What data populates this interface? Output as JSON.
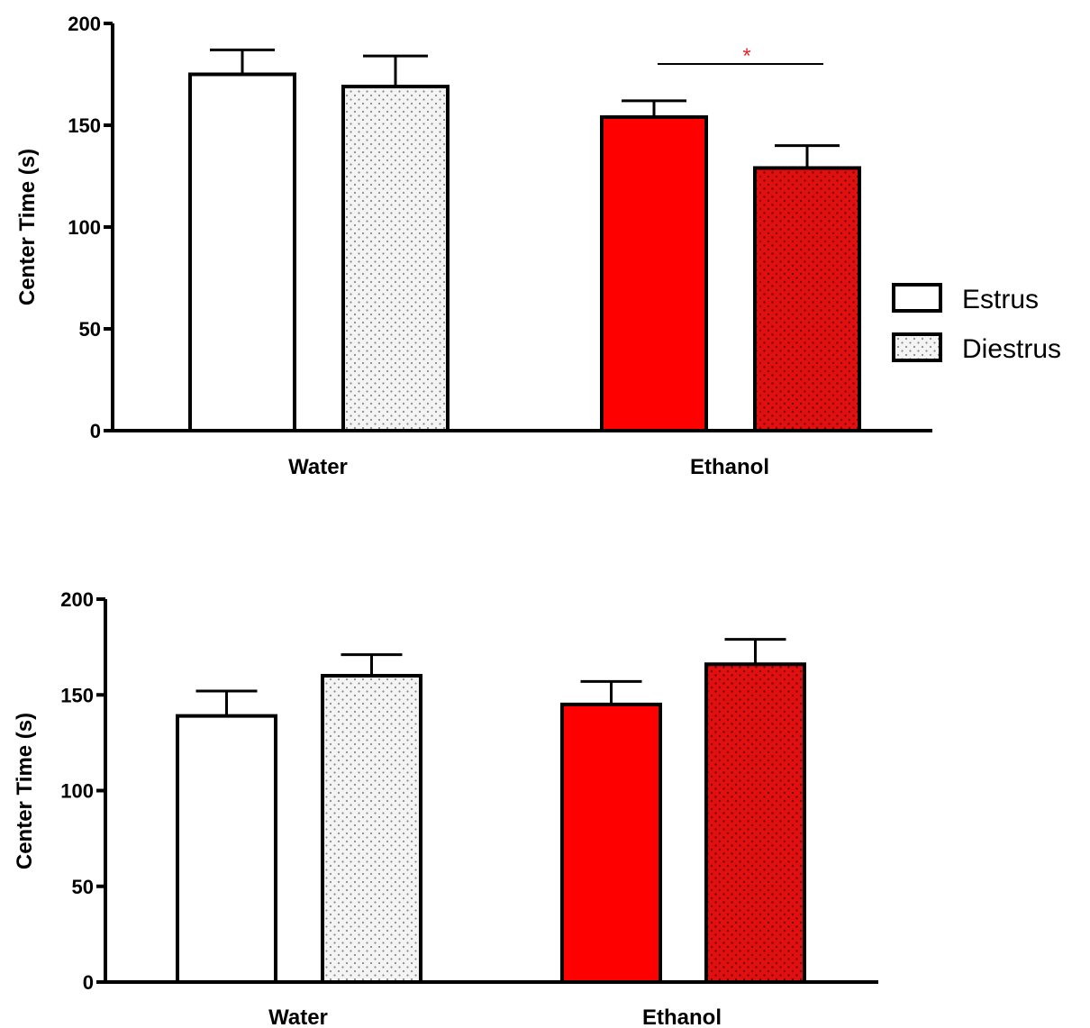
{
  "chart_data": [
    {
      "type": "bar",
      "ylabel": "Center Time (s)",
      "ylim": [
        0,
        200
      ],
      "yticks": [
        "0",
        "50",
        "100",
        "150",
        "200"
      ],
      "categories": [
        "Water",
        "Ethanol"
      ],
      "series": [
        {
          "name": "Estrus",
          "values": [
            175,
            154
          ],
          "errors": [
            12,
            8
          ]
        },
        {
          "name": "Diestrus",
          "values": [
            169,
            129
          ],
          "errors": [
            15,
            11
          ]
        }
      ],
      "colors": {
        "Water": "#ffffff",
        "Ethanol": "#ff0000"
      },
      "patterns": {
        "Estrus": "solid",
        "Diestrus": "dotted"
      },
      "annotation": {
        "text": "*",
        "color": "#e8262a",
        "between": "Ethanol Estrus vs Ethanol Diestrus"
      },
      "legend": {
        "placement": "right",
        "entries": [
          "Estrus",
          "Diestrus"
        ]
      },
      "grid": false
    },
    {
      "type": "bar",
      "ylabel": "Center Time (s)",
      "ylim": [
        0,
        200
      ],
      "yticks": [
        "0",
        "50",
        "100",
        "150",
        "200"
      ],
      "categories": [
        "Water",
        "Ethanol"
      ],
      "series": [
        {
          "name": "Estrus",
          "values": [
            139,
            145
          ],
          "errors": [
            13,
            12
          ]
        },
        {
          "name": "Diestrus",
          "values": [
            160,
            166
          ],
          "errors": [
            11,
            13
          ]
        }
      ],
      "colors": {
        "Water": "#ffffff",
        "Ethanol": "#ff0000"
      },
      "patterns": {
        "Estrus": "solid",
        "Diestrus": "dotted"
      },
      "grid": false
    }
  ]
}
